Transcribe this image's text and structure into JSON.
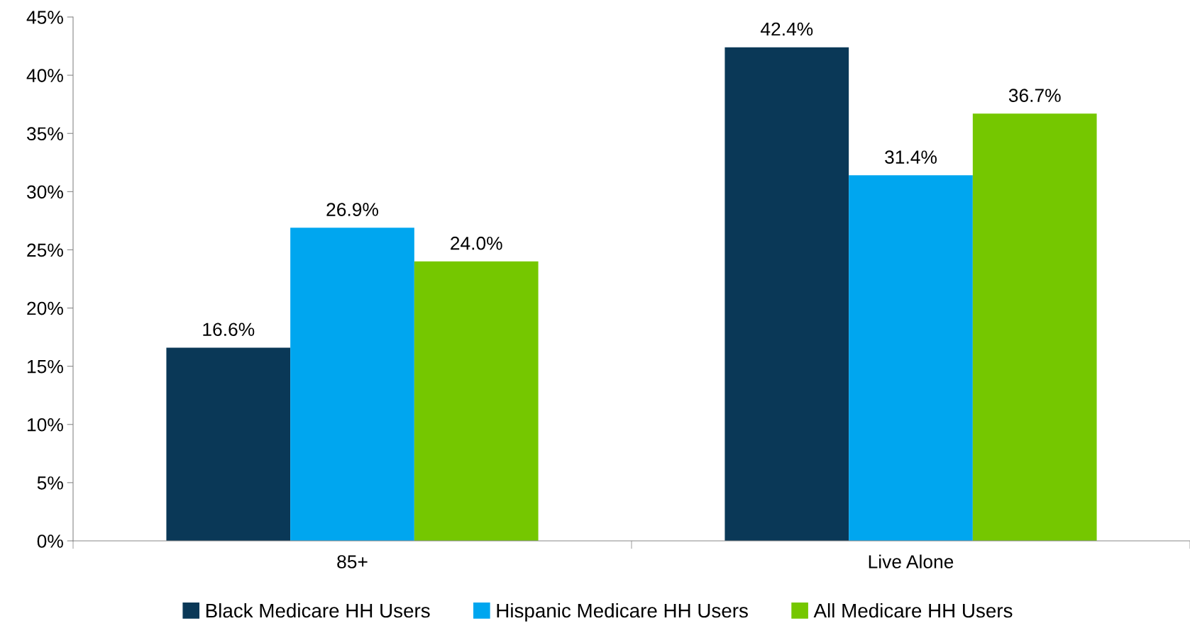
{
  "chart_data": {
    "type": "bar",
    "categories": [
      "85+",
      "Live Alone"
    ],
    "series": [
      {
        "name": "Black Medicare HH Users",
        "color": "#0a3857",
        "values": [
          16.6,
          42.4
        ],
        "value_labels": [
          "16.6%",
          "42.4%"
        ]
      },
      {
        "name": "Hispanic Medicare HH Users",
        "color": "#00a6ef",
        "values": [
          26.9,
          31.4
        ],
        "value_labels": [
          "26.9%",
          "31.4%"
        ]
      },
      {
        "name": "All Medicare HH Users",
        "color": "#75c700",
        "values": [
          24.0,
          36.7
        ],
        "value_labels": [
          "24.0%",
          "36.7%"
        ]
      }
    ],
    "ylim": [
      0,
      45
    ],
    "yticks": [
      {
        "value": 0,
        "label": "0%"
      },
      {
        "value": 5,
        "label": "5%"
      },
      {
        "value": 10,
        "label": "10%"
      },
      {
        "value": 15,
        "label": "15%"
      },
      {
        "value": 20,
        "label": "20%"
      },
      {
        "value": 25,
        "label": "25%"
      },
      {
        "value": 30,
        "label": "30%"
      },
      {
        "value": 35,
        "label": "35%"
      },
      {
        "value": 40,
        "label": "40%"
      },
      {
        "value": 45,
        "label": "45%"
      }
    ],
    "grid": false,
    "legend": "bottom"
  }
}
